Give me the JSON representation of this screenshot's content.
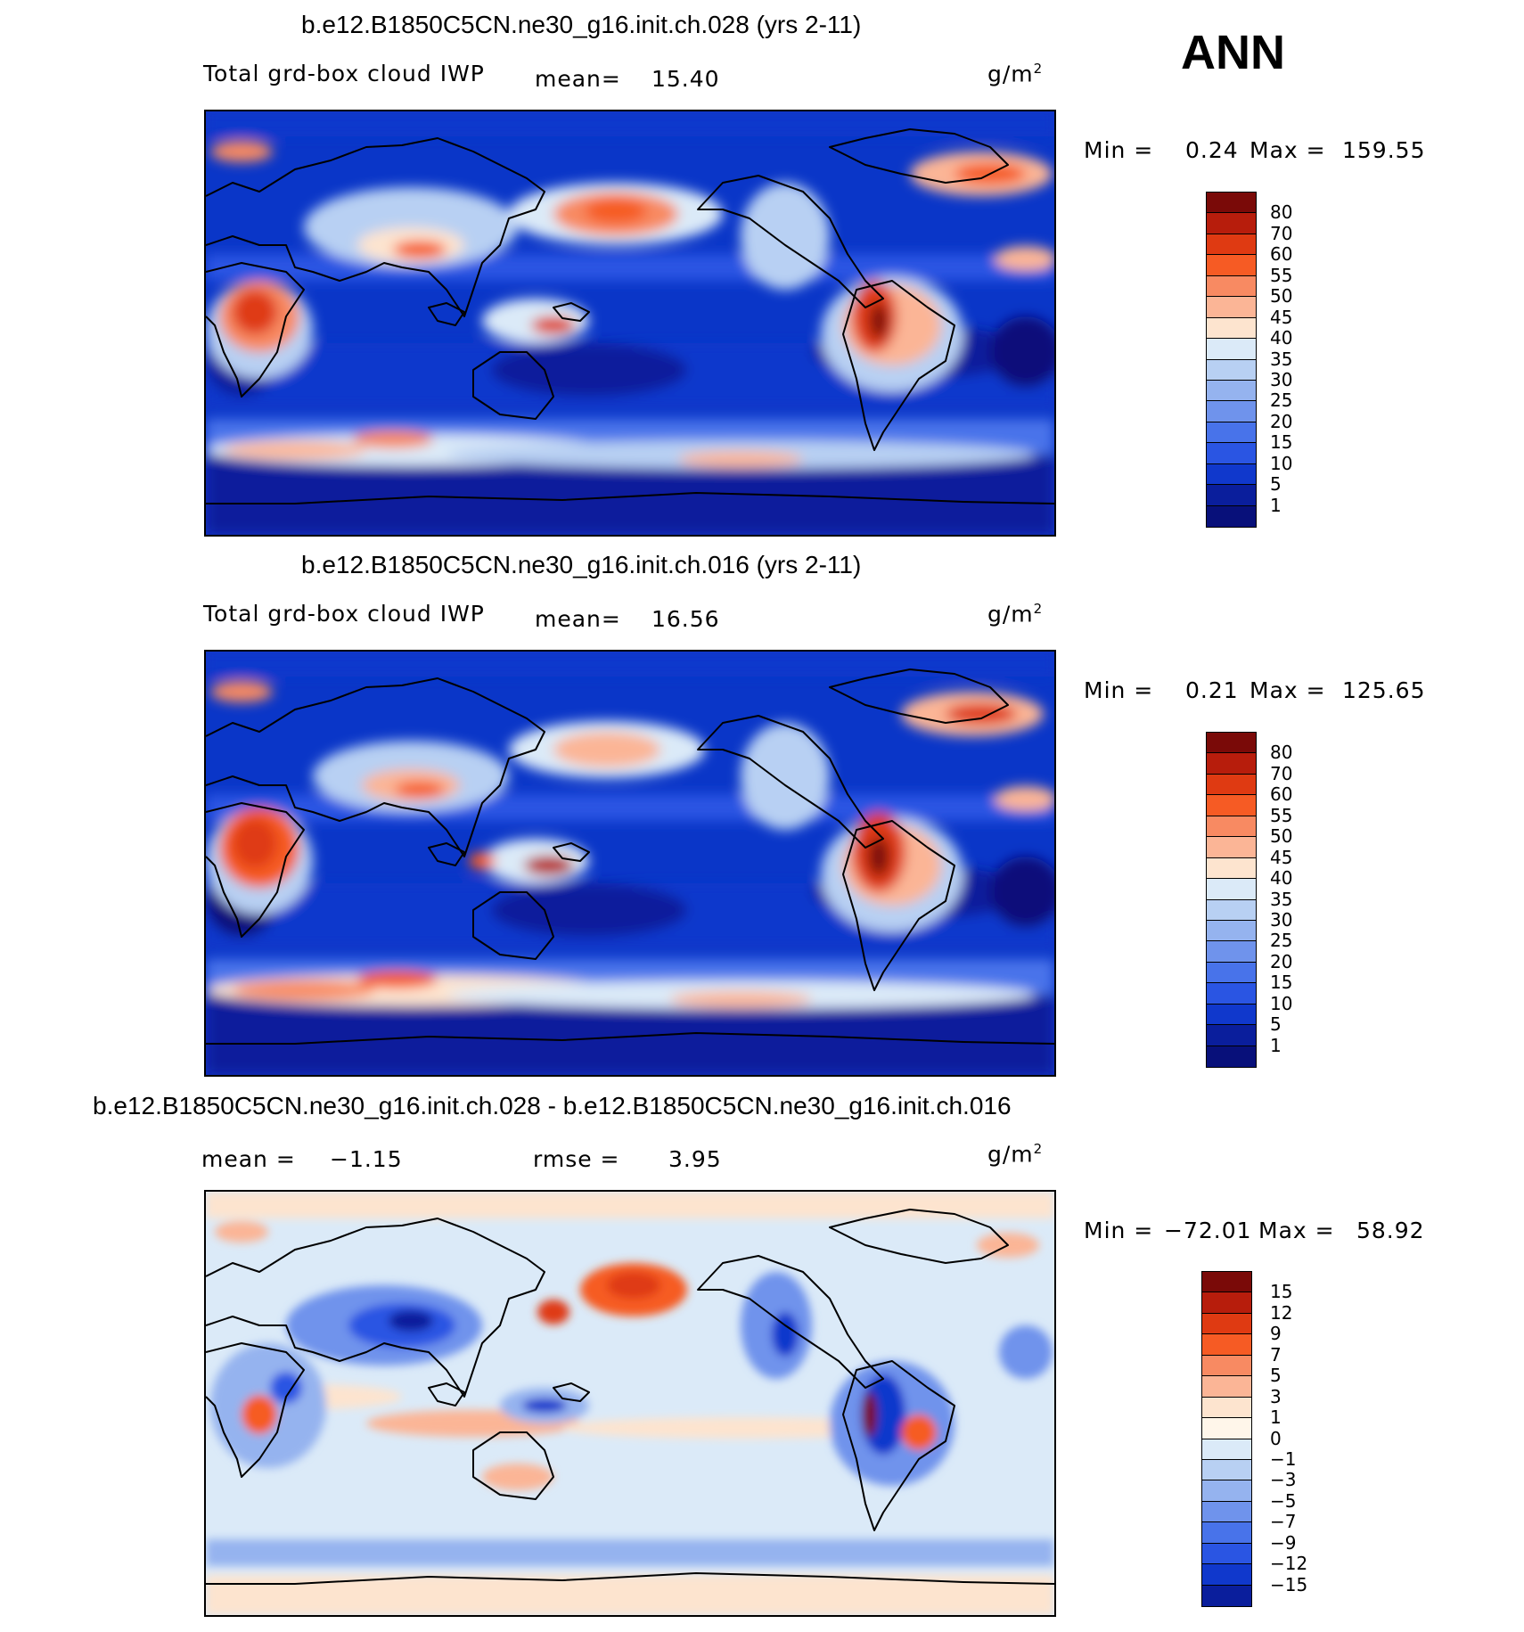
{
  "season": "ANN",
  "palette": {
    "p15": "#7a0a08",
    "p12": "#b71d0c",
    "p9": "#df3a12",
    "p7": "#f65b24",
    "p5": "#f88a62",
    "p3": "#fbb596",
    "p1": "#fde4cf",
    "p0": "#dbeaf8",
    "n1": "#b8d0f3",
    "n3": "#95b3ef",
    "n5": "#6f93ec",
    "n7": "#4873ea",
    "n9": "#2a55e3",
    "n12": "#1038cc",
    "n15": "#0a1e9c",
    "n20": "#08107a"
  },
  "chart_data": [
    {
      "type": "heatmap",
      "title": "b.e12.B1850C5CN.ne30_g16.init.ch.028 (yrs 2-11)",
      "variable": "Total grd-box cloud IWP",
      "mean_label": "mean=",
      "mean": "15.40",
      "units": "g/m",
      "units_exp": "2",
      "min_label": "Min  =",
      "min": "0.24",
      "max_label": "Max  =",
      "max": "159.55",
      "levels": [
        "80",
        "70",
        "60",
        "55",
        "50",
        "45",
        "40",
        "35",
        "30",
        "25",
        "20",
        "15",
        "10",
        "5",
        "1"
      ],
      "colors": [
        "#7a0a08",
        "#b71d0c",
        "#df3a12",
        "#f65b24",
        "#f88a62",
        "#fbb596",
        "#fde4cf",
        "#dbeaf8",
        "#b8d0f3",
        "#95b3ef",
        "#6f93ec",
        "#4873ea",
        "#2a55e3",
        "#1038cc",
        "#0a1e9c",
        "#08107a"
      ]
    },
    {
      "type": "heatmap",
      "title": "b.e12.B1850C5CN.ne30_g16.init.ch.016 (yrs 2-11)",
      "variable": "Total grd-box cloud IWP",
      "mean_label": "mean=",
      "mean": "16.56",
      "units": "g/m",
      "units_exp": "2",
      "min_label": "Min  =",
      "min": "0.21",
      "max_label": "Max  =",
      "max": "125.65",
      "levels": [
        "80",
        "70",
        "60",
        "55",
        "50",
        "45",
        "40",
        "35",
        "30",
        "25",
        "20",
        "15",
        "10",
        "5",
        "1"
      ],
      "colors": [
        "#7a0a08",
        "#b71d0c",
        "#df3a12",
        "#f65b24",
        "#f88a62",
        "#fbb596",
        "#fde4cf",
        "#dbeaf8",
        "#b8d0f3",
        "#95b3ef",
        "#6f93ec",
        "#4873ea",
        "#2a55e3",
        "#1038cc",
        "#0a1e9c",
        "#08107a"
      ]
    },
    {
      "type": "heatmap",
      "title": "b.e12.B1850C5CN.ne30_g16.init.ch.028 - b.e12.B1850C5CN.ne30_g16.init.ch.016",
      "mean_label": "mean =",
      "mean": "−1.15",
      "rmse_label": "rmse =",
      "rmse": "3.95",
      "units": "g/m",
      "units_exp": "2",
      "min_label": "Min  =",
      "min": "−72.01",
      "max_label": "Max  =",
      "max": "58.92",
      "levels": [
        "15",
        "12",
        "9",
        "7",
        "5",
        "3",
        "1",
        "0",
        "−1",
        "−3",
        "−5",
        "−7",
        "−9",
        "−12",
        "−15"
      ],
      "colors": [
        "#7a0a08",
        "#b71d0c",
        "#df3a12",
        "#f65b24",
        "#f88a62",
        "#fbb596",
        "#fde4cf",
        "#fff6ea",
        "#dbeaf8",
        "#b8d0f3",
        "#95b3ef",
        "#6f93ec",
        "#4873ea",
        "#2a55e3",
        "#1038cc",
        "#0a1e9c"
      ]
    }
  ]
}
